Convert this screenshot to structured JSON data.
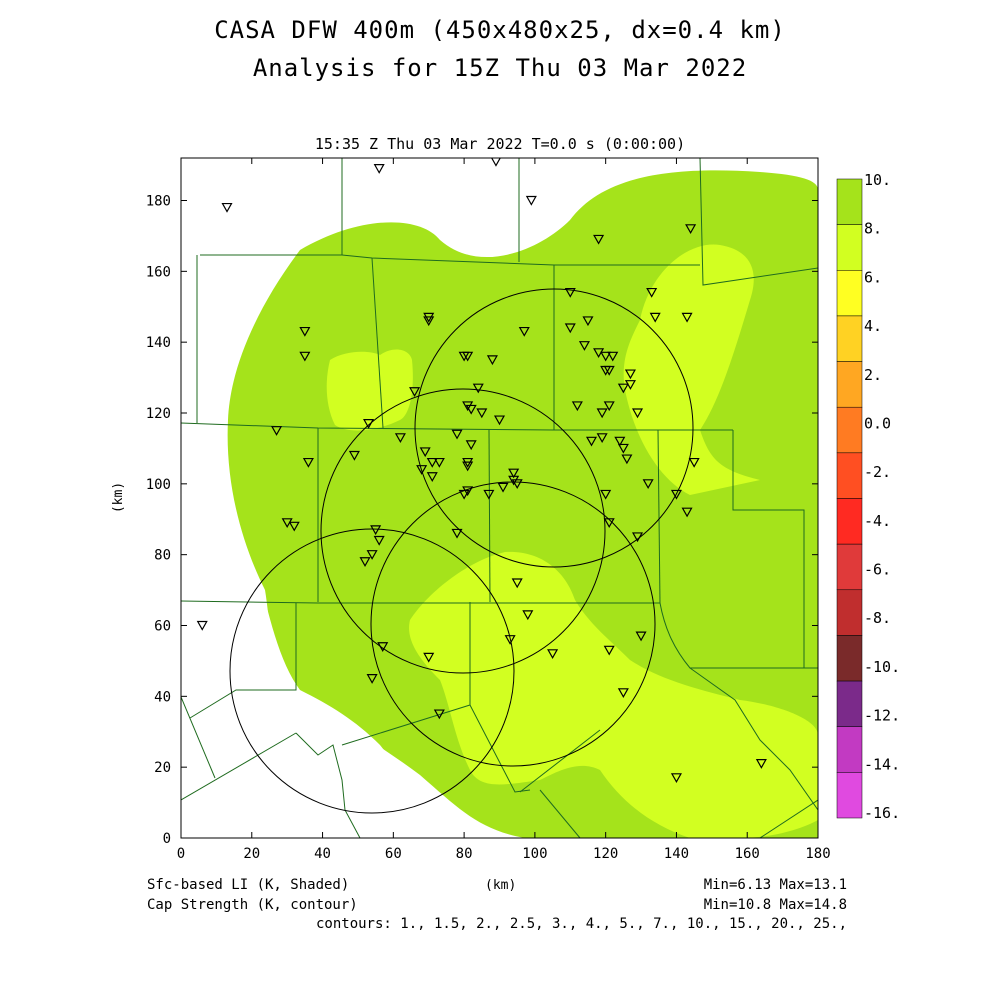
{
  "title": "CASA DFW 400m (450x480x25, dx=0.4 km)",
  "subtitle": "Analysis for 15Z Thu 03 Mar 2022",
  "valid_time": "15:35 Z Thu 03 Mar 2022   T=0.0 s (0:00:00)",
  "axis": {
    "xlabel": "(km)",
    "ylabel": "(km)",
    "xlim": [
      0,
      180
    ],
    "ylim": [
      0,
      192
    ],
    "xticks": [
      "0",
      "20",
      "40",
      "60",
      "80",
      "100",
      "120",
      "140",
      "160",
      "180"
    ],
    "yticks": [
      "0",
      "20",
      "40",
      "60",
      "80",
      "100",
      "120",
      "140",
      "160",
      "180"
    ]
  },
  "footer": {
    "shaded": "Sfc-based LI (K, Shaded)",
    "contour": "Cap Strength (K, contour)",
    "shaded_range": "Min=6.13 Max=13.1",
    "contour_range": "Min=10.8 Max=14.8",
    "contours": "contours: 1., 1.5, 2., 2.5, 3., 4., 5., 7., 10., 15., 20., 25.,"
  },
  "colorbar": {
    "labels": [
      "10.",
      "8.",
      "6.",
      "4.",
      "2.",
      "0.0",
      "-2.",
      "-4.",
      "-6.",
      "-8.",
      "-10.",
      "-12.",
      "-14.",
      "-16."
    ],
    "colors": [
      "#a5e31b",
      "#d2ff21",
      "#ffff22",
      "#ffd223",
      "#ffa722",
      "#ff7b22",
      "#ff4f22",
      "#ff2a22",
      "#e03a3a",
      "#c02e2e",
      "#7a2a2a",
      "#7b2a8a",
      "#c23ac2",
      "#e04ae0"
    ]
  },
  "chart_data": {
    "type": "heatmap",
    "field": "Sfc-based LI (K)",
    "value_range": [
      6.13,
      13.1
    ],
    "radar_circles_km": [
      {
        "center": [
          54,
          48
        ],
        "radius": 40
      },
      {
        "center": [
          80,
          87
        ],
        "radius": 40
      },
      {
        "center": [
          106,
          116
        ],
        "radius": 39
      },
      {
        "center": [
          94,
          61
        ],
        "radius": 40
      }
    ],
    "stations_km": [
      [
        13,
        178
      ],
      [
        56,
        189
      ],
      [
        89,
        191
      ],
      [
        99,
        180
      ],
      [
        118,
        169
      ],
      [
        144,
        172
      ],
      [
        35,
        143
      ],
      [
        35,
        136
      ],
      [
        70,
        147
      ],
      [
        70,
        146
      ],
      [
        80,
        136
      ],
      [
        81,
        136
      ],
      [
        88,
        135
      ],
      [
        97,
        143
      ],
      [
        110,
        154
      ],
      [
        115,
        146
      ],
      [
        110,
        144
      ],
      [
        114,
        139
      ],
      [
        118,
        137
      ],
      [
        120,
        136
      ],
      [
        122,
        136
      ],
      [
        121,
        132
      ],
      [
        120,
        132
      ],
      [
        127,
        131
      ],
      [
        127,
        128
      ],
      [
        125,
        127
      ],
      [
        133,
        154
      ],
      [
        134,
        147
      ],
      [
        143,
        147
      ],
      [
        66,
        126
      ],
      [
        84,
        127
      ],
      [
        81,
        122
      ],
      [
        82,
        121
      ],
      [
        85,
        120
      ],
      [
        90,
        118
      ],
      [
        112,
        122
      ],
      [
        119,
        120
      ],
      [
        121,
        122
      ],
      [
        129,
        120
      ],
      [
        124,
        112
      ],
      [
        119,
        113
      ],
      [
        116,
        112
      ],
      [
        125,
        110
      ],
      [
        126,
        107
      ],
      [
        145,
        106
      ],
      [
        27,
        115
      ],
      [
        36,
        106
      ],
      [
        49,
        108
      ],
      [
        53,
        117
      ],
      [
        62,
        113
      ],
      [
        69,
        109
      ],
      [
        73,
        106
      ],
      [
        71,
        106
      ],
      [
        68,
        104
      ],
      [
        71,
        102
      ],
      [
        78,
        114
      ],
      [
        82,
        111
      ],
      [
        81,
        106
      ],
      [
        81,
        105
      ],
      [
        94,
        103
      ],
      [
        94,
        101
      ],
      [
        95,
        100
      ],
      [
        91,
        99
      ],
      [
        87,
        97
      ],
      [
        81,
        98
      ],
      [
        80,
        97
      ],
      [
        120,
        97
      ],
      [
        132,
        100
      ],
      [
        140,
        97
      ],
      [
        143,
        92
      ],
      [
        30,
        89
      ],
      [
        32,
        88
      ],
      [
        55,
        87
      ],
      [
        56,
        84
      ],
      [
        54,
        80
      ],
      [
        52,
        78
      ],
      [
        78,
        86
      ],
      [
        121,
        89
      ],
      [
        129,
        85
      ],
      [
        95,
        72
      ],
      [
        98,
        63
      ],
      [
        93,
        56
      ],
      [
        105,
        52
      ],
      [
        121,
        53
      ],
      [
        130,
        57
      ],
      [
        57,
        54
      ],
      [
        70,
        51
      ],
      [
        54,
        45
      ],
      [
        73,
        35
      ],
      [
        125,
        41
      ],
      [
        6,
        60
      ],
      [
        140,
        17
      ],
      [
        164,
        21
      ]
    ]
  }
}
